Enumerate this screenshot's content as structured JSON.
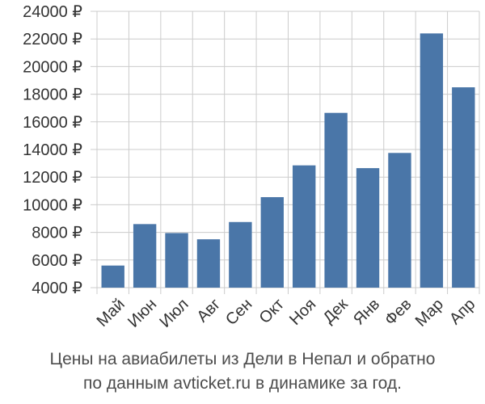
{
  "chart_data": {
    "type": "bar",
    "categories": [
      "Май",
      "Июн",
      "Июл",
      "Авг",
      "Сен",
      "Окт",
      "Ноя",
      "Дек",
      "Янв",
      "Фев",
      "Мар",
      "Апр"
    ],
    "values": [
      5600,
      8600,
      7950,
      7500,
      8750,
      10550,
      12850,
      16650,
      12650,
      13750,
      22400,
      18500
    ],
    "ylim": [
      4000,
      24000
    ],
    "yticks": [
      4000,
      6000,
      8000,
      10000,
      12000,
      14000,
      16000,
      18000,
      20000,
      22000,
      24000
    ],
    "currency_suffix": " ₽",
    "bar_color": "#4a76a8",
    "grid_color": "#cccccc",
    "grid": true
  },
  "caption": {
    "line1": "Цены на авиабилеты из Дели в Непал и обратно",
    "line2": "по данным avticket.ru в динамике за год."
  }
}
